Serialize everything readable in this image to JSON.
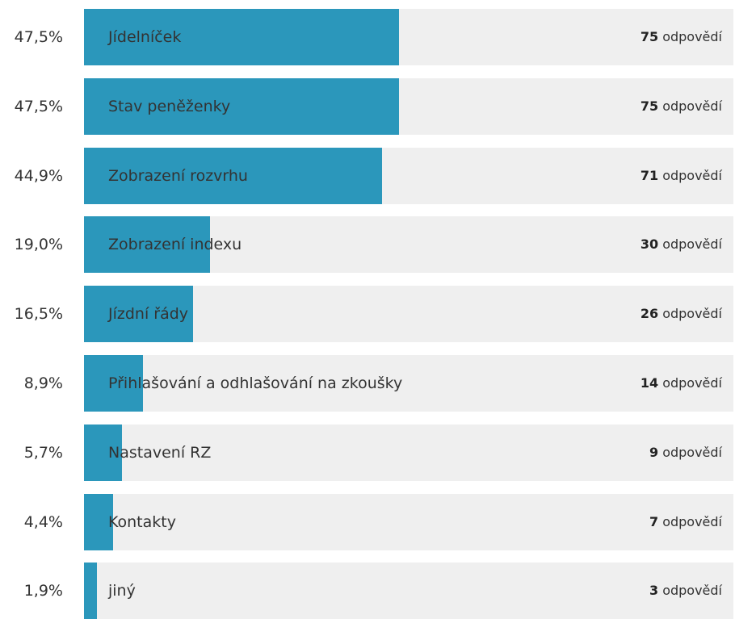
{
  "chart_data": {
    "type": "bar",
    "orientation": "horizontal",
    "bar_color": "#2b97bb",
    "track_color": "#efefef",
    "count_suffix": "odpovědí",
    "rows": [
      {
        "percent_label": "47,5%",
        "label": "Jídelníček",
        "count": "75",
        "value": 47.5
      },
      {
        "percent_label": "47,5%",
        "label": "Stav peněženky",
        "count": "75",
        "value": 47.5
      },
      {
        "percent_label": "44,9%",
        "label": "Zobrazení rozvrhu",
        "count": "71",
        "value": 44.9
      },
      {
        "percent_label": "19,0%",
        "label": "Zobrazení indexu",
        "count": "30",
        "value": 19.0
      },
      {
        "percent_label": "16,5%",
        "label": "Jízdní řády",
        "count": "26",
        "value": 16.5
      },
      {
        "percent_label": "8,9%",
        "label": "Přihlašování a odhlašování na zkoušky",
        "count": "14",
        "value": 8.9
      },
      {
        "percent_label": "5,7%",
        "label": "Nastavení RZ",
        "count": "9",
        "value": 5.7
      },
      {
        "percent_label": "4,4%",
        "label": "Kontakty",
        "count": "7",
        "value": 4.4
      },
      {
        "percent_label": "1,9%",
        "label": "jiný",
        "count": "3",
        "value": 1.9
      }
    ]
  }
}
